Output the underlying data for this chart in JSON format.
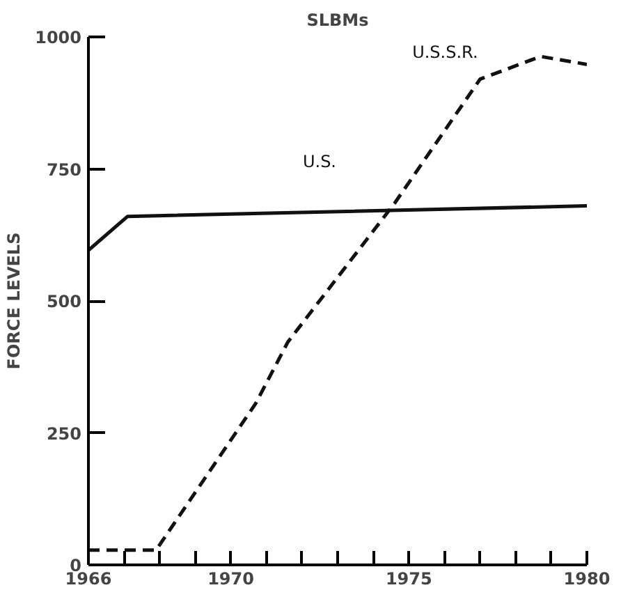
{
  "chart_data": {
    "type": "line",
    "title": "SLBMs",
    "ylabel": "FORCE LEVELS",
    "xlim": [
      1966,
      1980
    ],
    "ylim": [
      0,
      1000
    ],
    "xticks": [
      1966,
      {
        "value": 1967,
        "label": null
      },
      {
        "value": 1968,
        "label": null
      },
      {
        "value": 1969,
        "label": null
      },
      1970,
      {
        "value": 1971,
        "label": null
      },
      {
        "value": 1972,
        "label": null
      },
      {
        "value": 1973,
        "label": null
      },
      {
        "value": 1974,
        "label": null
      },
      1975,
      {
        "value": 1976,
        "label": null
      },
      {
        "value": 1977,
        "label": null
      },
      {
        "value": 1978,
        "label": null
      },
      {
        "value": 1979,
        "label": null
      },
      1980
    ],
    "yticks": [
      0,
      250,
      500,
      750,
      1000
    ],
    "grid": false,
    "series": [
      {
        "name": "U.S.",
        "color": "#111111",
        "line_style": "solid",
        "x": [
          1966,
          1967.1,
          1980
        ],
        "values": [
          596,
          660,
          680
        ]
      },
      {
        "name": "U.S.S.R.",
        "color": "#111111",
        "line_style": "dashed",
        "x": [
          1966,
          1967.9,
          1970.7,
          1971.6,
          1974.6,
          1977.0,
          1978.7,
          1980
        ],
        "values": [
          28,
          28,
          306,
          422,
          685,
          920,
          963,
          948
        ]
      }
    ]
  }
}
